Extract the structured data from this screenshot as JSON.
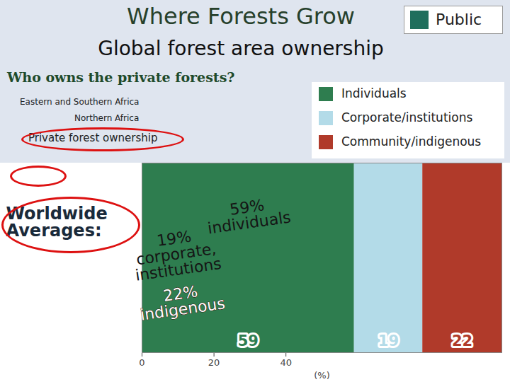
{
  "chart_data": {
    "type": "bar",
    "orientation": "horizontal",
    "stacked": true,
    "data_labels": true,
    "title": "Where Forests Grow",
    "subtitle": "Global forest area ownership",
    "annotations": [
      "Who owns the private forests?",
      "Public",
      "Eastern and Southern Africa",
      "Northern Africa",
      "Private forest ownership"
    ],
    "categories": [
      "Worldwide Averages:"
    ],
    "series": [
      {
        "name": "Individuals",
        "color": "#2e7d4f",
        "values": [
          59
        ],
        "value_labels": [
          "59% individuals"
        ]
      },
      {
        "name": "Corporate/institutions",
        "color": "#b3dbe8",
        "values": [
          19
        ],
        "value_labels": [
          "19% corporate, institutions"
        ]
      },
      {
        "name": "Community/indigenous",
        "color": "#b03a2a",
        "values": [
          22
        ],
        "value_labels": [
          "22% indigenous"
        ]
      }
    ],
    "xlabel": "(%)",
    "xlim": [
      0,
      100
    ],
    "xticks": [
      0,
      20,
      40
    ],
    "legend": "top-right"
  }
}
